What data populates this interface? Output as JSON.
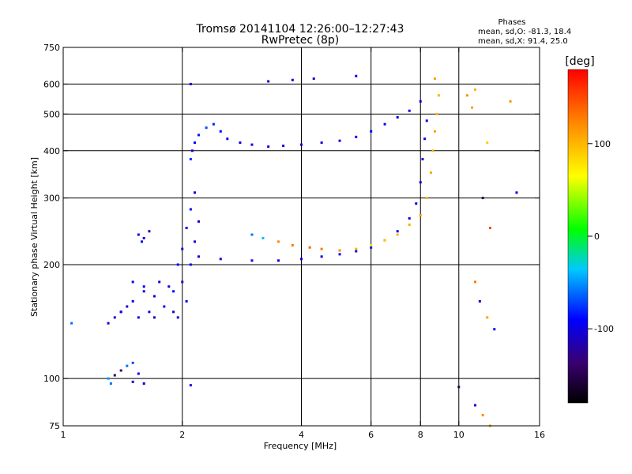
{
  "chart_data": {
    "type": "scatter",
    "title": "Tromsø 20141104 12:26:00–12:27:43",
    "subtitle": "RwPretec (8p)",
    "xlabel": "Frequency [MHz]",
    "ylabel": "Stationary phase Virtual Height [km]",
    "x_scale": "log",
    "y_scale": "log",
    "xlim": [
      1,
      16
    ],
    "ylim": [
      75,
      750
    ],
    "x_ticks": [
      1,
      2,
      4,
      6,
      8,
      10,
      16
    ],
    "y_ticks": [
      75,
      100,
      200,
      300,
      400,
      500,
      600,
      750
    ],
    "x_tick_labels": [
      "1",
      "2",
      "4",
      "6",
      "8",
      "10",
      "16"
    ],
    "y_tick_labels": [
      "75",
      "100",
      "200",
      "300",
      "400",
      "500",
      "600",
      "750"
    ],
    "x_grid": [
      2,
      4,
      6,
      8,
      10
    ],
    "y_grid": [
      100,
      200,
      300,
      400,
      500,
      600
    ],
    "grid": true,
    "stats": {
      "title": "Phases",
      "line_o": "mean, sd,O: -81.3, 18.4",
      "line_x": "mean, sd,X:  91.4, 25.0"
    },
    "colorbar": {
      "label": "[deg]",
      "ticks": [
        100,
        0,
        -100
      ],
      "tick_labels": [
        "100",
        "0",
        "-100"
      ],
      "range": [
        -180,
        180
      ]
    },
    "series": [
      {
        "points": [
          [
            1.05,
            140,
            -60
          ],
          [
            1.3,
            140,
            -100
          ],
          [
            1.35,
            145,
            -110
          ],
          [
            1.4,
            150,
            -105
          ],
          [
            1.5,
            160,
            -100
          ],
          [
            1.6,
            170,
            -100
          ],
          [
            1.7,
            165,
            -110
          ],
          [
            1.8,
            155,
            -100
          ],
          [
            1.9,
            150,
            -105
          ],
          [
            1.95,
            145,
            -100
          ],
          [
            1.5,
            180,
            -90
          ],
          [
            1.6,
            175,
            -95
          ],
          [
            1.75,
            180,
            -100
          ],
          [
            1.85,
            175,
            -105
          ],
          [
            1.9,
            170,
            -90
          ],
          [
            1.4,
            150,
            -100
          ],
          [
            1.45,
            155,
            -110
          ],
          [
            1.55,
            145,
            -95
          ],
          [
            1.65,
            150,
            -100
          ],
          [
            1.7,
            145,
            -110
          ],
          [
            1.3,
            100,
            -50
          ],
          [
            1.32,
            97,
            -60
          ],
          [
            1.35,
            102,
            -150
          ],
          [
            1.4,
            105,
            -140
          ],
          [
            1.45,
            108,
            -60
          ],
          [
            1.5,
            110,
            -70
          ],
          [
            1.55,
            103,
            -90
          ],
          [
            1.6,
            97,
            -100
          ],
          [
            1.5,
            98,
            -110
          ],
          [
            1.55,
            240,
            -100
          ],
          [
            1.6,
            235,
            -105
          ],
          [
            1.65,
            245,
            -110
          ],
          [
            1.58,
            230,
            -95
          ],
          [
            1.95,
            200,
            -90
          ],
          [
            2.0,
            220,
            -95
          ],
          [
            2.05,
            250,
            -90
          ],
          [
            2.1,
            280,
            -95
          ],
          [
            2.15,
            310,
            -100
          ],
          [
            2.0,
            180,
            -100
          ],
          [
            2.1,
            200,
            -100
          ],
          [
            2.05,
            160,
            -95
          ],
          [
            2.15,
            230,
            -105
          ],
          [
            2.2,
            260,
            -100
          ],
          [
            2.1,
            380,
            -80
          ],
          [
            2.15,
            420,
            -90
          ],
          [
            2.2,
            440,
            -85
          ],
          [
            2.12,
            400,
            -95
          ],
          [
            2.3,
            460,
            -70
          ],
          [
            2.4,
            470,
            -80
          ],
          [
            2.5,
            450,
            -90
          ],
          [
            2.6,
            430,
            -95
          ],
          [
            2.8,
            420,
            -100
          ],
          [
            3.0,
            415,
            -100
          ],
          [
            3.3,
            410,
            -100
          ],
          [
            3.6,
            412,
            -105
          ],
          [
            4.0,
            415,
            -100
          ],
          [
            4.5,
            420,
            -100
          ],
          [
            5.0,
            425,
            -100
          ],
          [
            5.5,
            435,
            -95
          ],
          [
            6.0,
            450,
            -90
          ],
          [
            6.5,
            470,
            -95
          ],
          [
            7.0,
            490,
            -100
          ],
          [
            7.5,
            510,
            -100
          ],
          [
            8.0,
            540,
            -100
          ],
          [
            2.2,
            210,
            -100
          ],
          [
            2.5,
            207,
            -105
          ],
          [
            3.0,
            205,
            -100
          ],
          [
            3.5,
            205,
            -100
          ],
          [
            4.0,
            207,
            -100
          ],
          [
            4.5,
            210,
            -100
          ],
          [
            5.0,
            213,
            -100
          ],
          [
            5.5,
            217,
            -100
          ],
          [
            6.0,
            222,
            -90
          ],
          [
            6.5,
            232,
            -85
          ],
          [
            7.0,
            245,
            -90
          ],
          [
            7.5,
            265,
            -95
          ],
          [
            7.8,
            290,
            -100
          ],
          [
            8.0,
            330,
            -100
          ],
          [
            8.1,
            380,
            -100
          ],
          [
            8.2,
            430,
            -100
          ],
          [
            8.3,
            480,
            -100
          ],
          [
            3.0,
            240,
            -60
          ],
          [
            3.2,
            235,
            -40
          ],
          [
            3.5,
            230,
            120
          ],
          [
            3.8,
            225,
            130
          ],
          [
            4.2,
            222,
            140
          ],
          [
            4.5,
            220,
            130
          ],
          [
            5.0,
            218,
            120
          ],
          [
            5.5,
            220,
            100
          ],
          [
            6.0,
            225,
            80
          ],
          [
            6.5,
            232,
            90
          ],
          [
            7.0,
            240,
            100
          ],
          [
            7.5,
            255,
            105
          ],
          [
            8.0,
            270,
            110
          ],
          [
            8.3,
            300,
            100
          ],
          [
            8.5,
            350,
            105
          ],
          [
            8.6,
            400,
            100
          ],
          [
            8.7,
            450,
            110
          ],
          [
            8.8,
            500,
            100
          ],
          [
            8.9,
            560,
            100
          ],
          [
            8.7,
            620,
            110
          ],
          [
            3.3,
            610,
            -110
          ],
          [
            3.8,
            615,
            -100
          ],
          [
            4.3,
            620,
            -110
          ],
          [
            5.5,
            630,
            -100
          ],
          [
            2.1,
            600,
            -100
          ],
          [
            10.5,
            560,
            120
          ],
          [
            10.8,
            520,
            110
          ],
          [
            11.0,
            580,
            100
          ],
          [
            11.5,
            300,
            -150
          ],
          [
            12.0,
            250,
            150
          ],
          [
            11.8,
            420,
            90
          ],
          [
            13.5,
            540,
            120
          ],
          [
            14.0,
            310,
            -100
          ],
          [
            11.0,
            180,
            130
          ],
          [
            11.3,
            160,
            -100
          ],
          [
            11.8,
            145,
            110
          ],
          [
            12.3,
            135,
            -90
          ],
          [
            10.0,
            95,
            -150
          ],
          [
            11.0,
            85,
            -100
          ],
          [
            11.5,
            80,
            120
          ],
          [
            12.0,
            75,
            110
          ],
          [
            2.1,
            96,
            -100
          ]
        ]
      }
    ]
  }
}
